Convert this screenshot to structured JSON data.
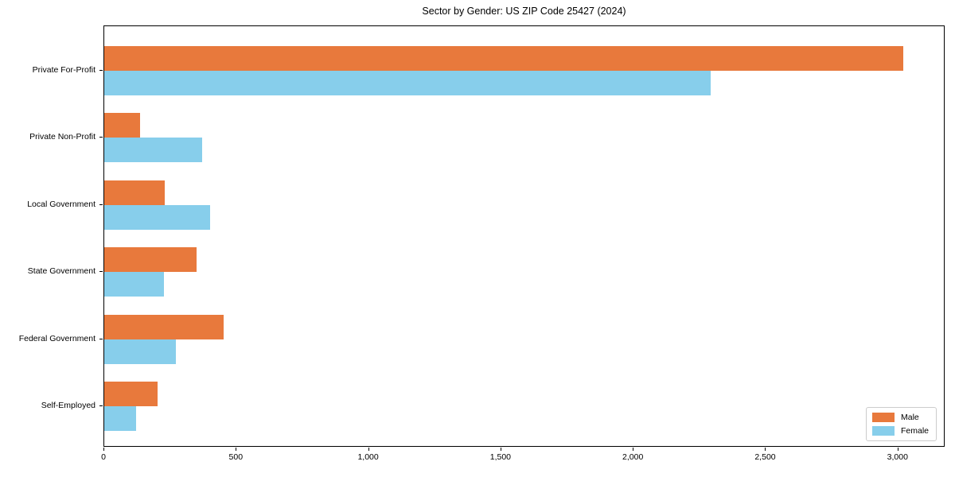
{
  "title": "Sector by Gender: US ZIP Code 25427 (2024)",
  "colors": {
    "male": "#E8793C",
    "female": "#87CEEB",
    "axis": "#000000",
    "legend_border": "#CCCCCC",
    "background": "#FFFFFF"
  },
  "legend": {
    "position": "lower right",
    "items": [
      {
        "label": "Male",
        "color": "#E8793C"
      },
      {
        "label": "Female",
        "color": "#87CEEB"
      }
    ]
  },
  "chart_data": {
    "type": "bar",
    "orientation": "horizontal",
    "title": "Sector by Gender: US ZIP Code 25427 (2024)",
    "xlabel": "",
    "ylabel": "",
    "categories": [
      "Private For-Profit",
      "Private Non-Profit",
      "Local Government",
      "State Government",
      "Federal Government",
      "Self-Employed"
    ],
    "series": [
      {
        "name": "Male",
        "color": "#E8793C",
        "values": [
          3020,
          135,
          230,
          350,
          450,
          200
        ]
      },
      {
        "name": "Female",
        "color": "#87CEEB",
        "values": [
          2290,
          370,
          400,
          225,
          270,
          120
        ]
      }
    ],
    "xlim": [
      0,
      3178
    ],
    "x_ticks": [
      0,
      500,
      1000,
      1500,
      2000,
      2500,
      3000
    ],
    "x_tick_labels": [
      "0",
      "500",
      "1,000",
      "1,500",
      "2,000",
      "2,500",
      "3,000"
    ],
    "grid": false,
    "legend_position": "lower right"
  }
}
